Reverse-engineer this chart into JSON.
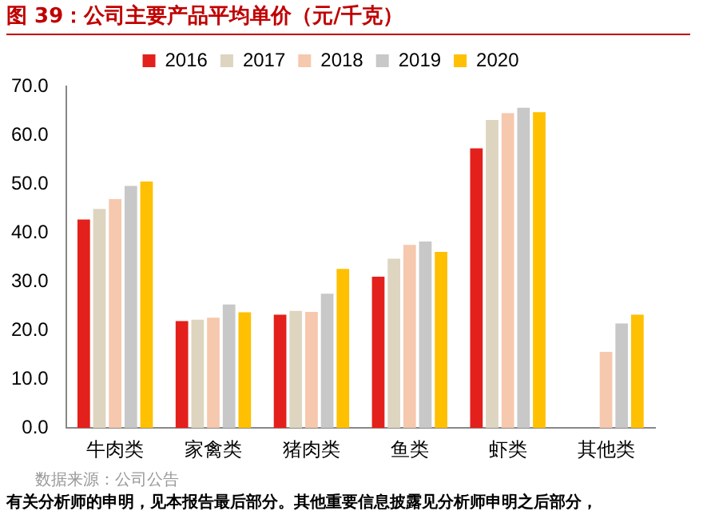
{
  "chart_data": {
    "type": "bar",
    "title": "图 39：公司主要产品平均单价（元/千克）",
    "categories": [
      "牛肉类",
      "家禽类",
      "猪肉类",
      "鱼类",
      "虾类",
      "其他类"
    ],
    "series": [
      {
        "name": "2016",
        "color": "#e3201b",
        "values": [
          42.7,
          21.9,
          23.2,
          31.0,
          57.3,
          null
        ]
      },
      {
        "name": "2017",
        "color": "#ddd5c0",
        "values": [
          44.9,
          22.2,
          24.0,
          34.7,
          63.1,
          null
        ]
      },
      {
        "name": "2018",
        "color": "#f6c8ad",
        "values": [
          46.9,
          22.6,
          23.8,
          37.5,
          64.5,
          15.6
        ]
      },
      {
        "name": "2019",
        "color": "#c8c8c8",
        "values": [
          49.6,
          25.3,
          27.5,
          38.2,
          65.6,
          21.4
        ]
      },
      {
        "name": "2020",
        "color": "#fec000",
        "values": [
          50.5,
          23.7,
          32.6,
          36.1,
          64.7,
          23.2
        ]
      }
    ],
    "ylim": [
      0,
      70
    ],
    "yticks": [
      {
        "value": 0,
        "label": "0.0"
      },
      {
        "value": 10,
        "label": "10.0"
      },
      {
        "value": 20,
        "label": "20.0"
      },
      {
        "value": 30,
        "label": "30.0"
      },
      {
        "value": 40,
        "label": "40.0"
      },
      {
        "value": 50,
        "label": "50.0"
      },
      {
        "value": 60,
        "label": "60.0"
      },
      {
        "value": 70,
        "label": "70.0"
      }
    ],
    "grid": false,
    "legend": "top",
    "annotations": [
      "数据来源：公司公告",
      "有关分析师的申明，见本报告最后部分。其他重要信息披露见分析师申明之后部分，"
    ]
  }
}
